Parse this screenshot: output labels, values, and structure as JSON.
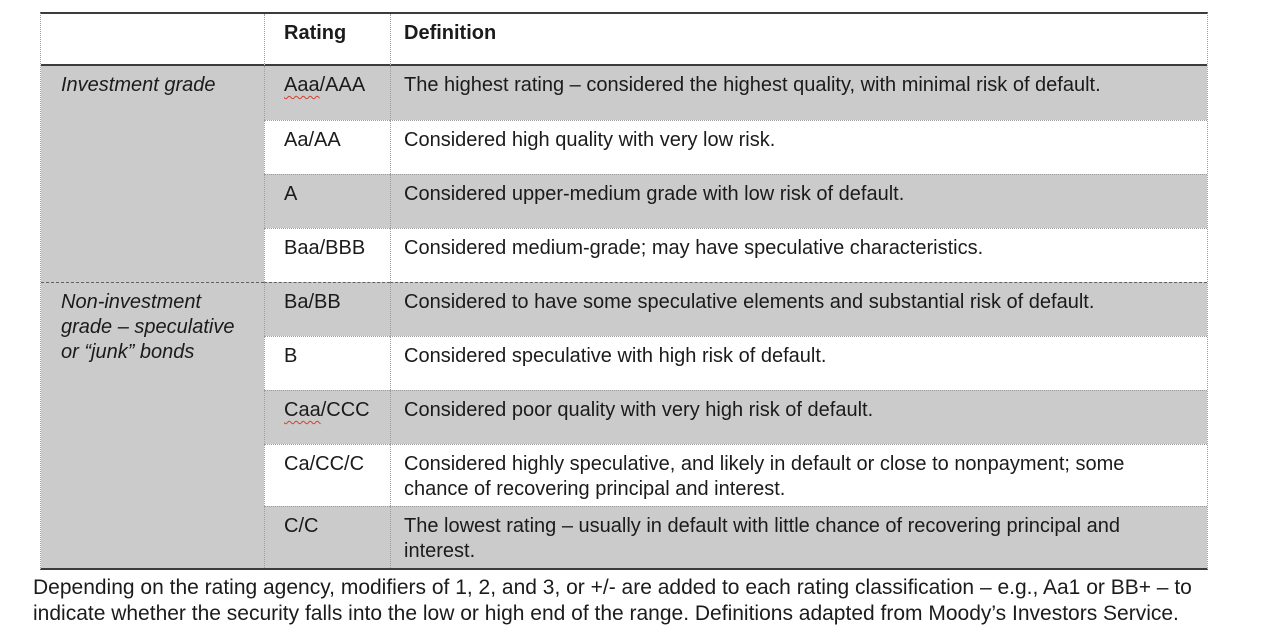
{
  "document": {
    "colors": {
      "row_shade": "#cbcbcb",
      "border_dark": "#3c3c3c",
      "border_dotted": "#9e9e9e",
      "border_section": "#606060",
      "squiggle_red": "#d23f2f",
      "text": "#1b1b1b"
    },
    "table": {
      "columns": [
        "",
        "Rating",
        "Definition"
      ],
      "sections": [
        {
          "category": "Investment grade",
          "rows": [
            {
              "rating": "Aaa/AAA",
              "squiggle_prefix": "Aaa",
              "definition": "The highest rating – considered the highest quality, with minimal risk of default.",
              "shade": true
            },
            {
              "rating": "Aa/AA",
              "definition": "Considered high quality with very low risk.",
              "shade": false
            },
            {
              "rating": "A",
              "definition": "Considered upper-medium grade with low risk of default.",
              "shade": true
            },
            {
              "rating": "Baa/BBB",
              "definition": "Considered medium-grade; may have speculative characteristics.",
              "shade": false
            }
          ]
        },
        {
          "category": "Non-investment grade – speculative or “junk” bonds",
          "rows": [
            {
              "rating": "Ba/BB",
              "definition": "Considered to have some speculative elements and substantial risk of default.",
              "shade": true
            },
            {
              "rating": "B",
              "definition": "Considered speculative with high risk of default.",
              "shade": false
            },
            {
              "rating": "Caa/CCC",
              "squiggle_prefix": "Caa",
              "definition": "Considered poor quality with very high risk of default.",
              "shade": true
            },
            {
              "rating": "Ca/CC/C",
              "definition": "Considered highly speculative, and likely in default or close to nonpayment; some chance of recovering principal and interest.",
              "shade": false
            },
            {
              "rating": "C/C",
              "definition": "The lowest rating – usually in default with little chance of recovering principal and interest.",
              "shade": true
            }
          ]
        }
      ],
      "footnote": "Depending on the rating agency, modifiers of 1, 2, and 3, or +/- are added to each rating classification – e.g., Aa1 or BB+ – to indicate whether the security falls into the low or high end of the range. Definitions adapted from Moody’s Investors Service."
    }
  }
}
